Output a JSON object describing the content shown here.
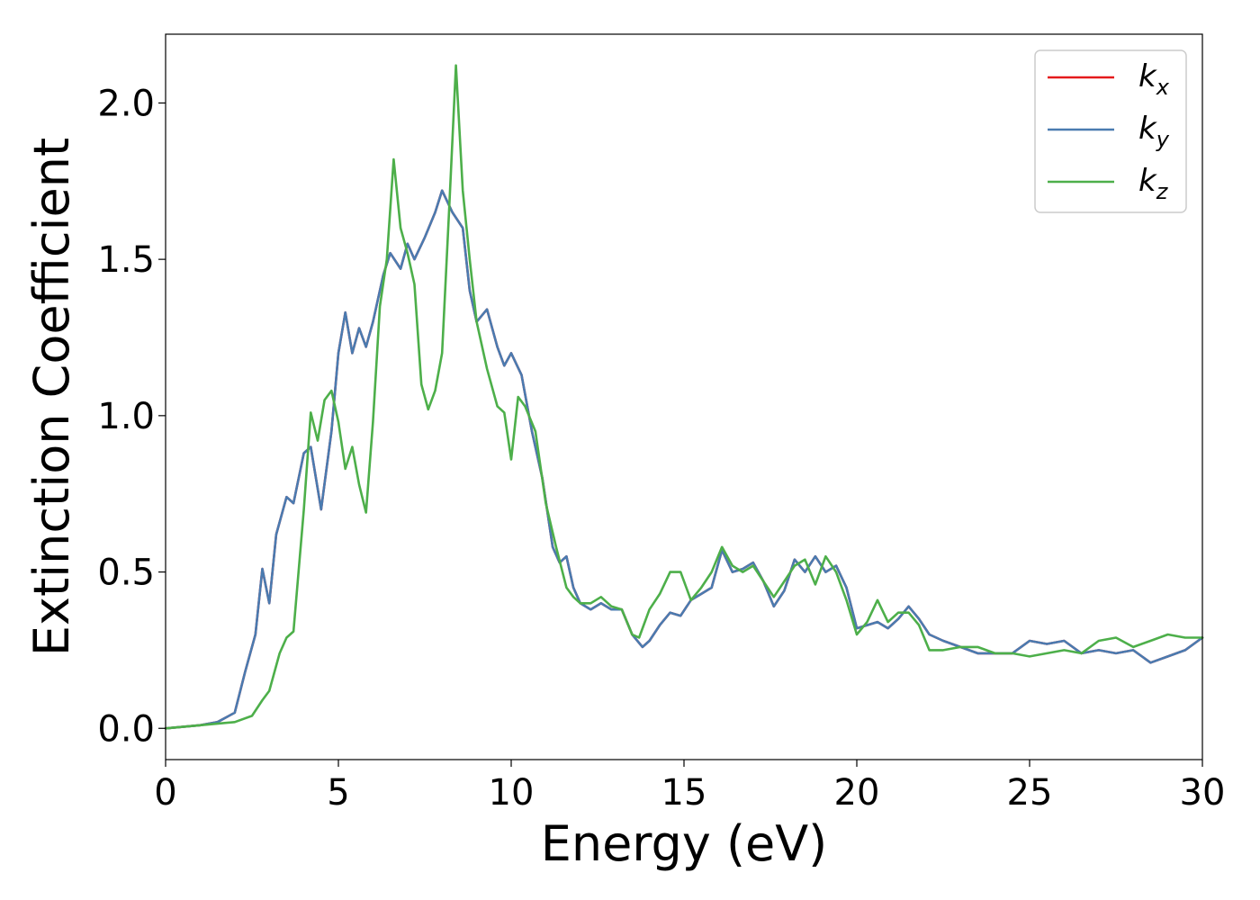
{
  "chart_data": {
    "type": "line",
    "title": "",
    "xlabel": "Energy (eV)",
    "ylabel": "Extinction Coefficient",
    "xlim": [
      0,
      30
    ],
    "ylim": [
      -0.1,
      2.22
    ],
    "xticks": [
      0,
      5,
      10,
      15,
      20,
      25,
      30
    ],
    "xtick_labels": [
      "0",
      "5",
      "10",
      "15",
      "20",
      "25",
      "30"
    ],
    "yticks": [
      0.0,
      0.5,
      1.0,
      1.5,
      2.0
    ],
    "ytick_labels": [
      "0.0",
      "0.5",
      "1.0",
      "1.5",
      "2.0"
    ],
    "grid": false,
    "legend_position": "top-right",
    "series": [
      {
        "name": "k_x",
        "label_main": "k",
        "label_sub": "x",
        "color": "#e41a1c",
        "x": [
          0,
          1,
          1.5,
          2,
          2.3,
          2.6,
          2.8,
          3,
          3.2,
          3.5,
          3.7,
          4,
          4.2,
          4.5,
          4.8,
          5,
          5.2,
          5.4,
          5.6,
          5.8,
          6,
          6.3,
          6.5,
          6.8,
          7,
          7.2,
          7.5,
          7.8,
          8,
          8.3,
          8.6,
          8.8,
          9,
          9.3,
          9.6,
          9.8,
          10,
          10.3,
          10.6,
          10.9,
          11.2,
          11.4,
          11.6,
          11.8,
          12,
          12.3,
          12.6,
          12.9,
          13.2,
          13.5,
          13.8,
          14,
          14.3,
          14.6,
          14.9,
          15.2,
          15.5,
          15.8,
          16.1,
          16.4,
          16.7,
          17,
          17.3,
          17.6,
          17.9,
          18.2,
          18.5,
          18.8,
          19.1,
          19.4,
          19.7,
          20,
          20.3,
          20.6,
          20.9,
          21.2,
          21.5,
          21.8,
          22.1,
          22.5,
          23,
          23.5,
          24,
          24.5,
          25,
          25.5,
          26,
          26.5,
          27,
          27.5,
          28,
          28.5,
          29,
          29.5,
          30
        ],
        "y": [
          0.0,
          0.01,
          0.02,
          0.05,
          0.18,
          0.3,
          0.51,
          0.4,
          0.62,
          0.74,
          0.72,
          0.88,
          0.9,
          0.7,
          0.95,
          1.2,
          1.33,
          1.2,
          1.28,
          1.22,
          1.3,
          1.45,
          1.52,
          1.47,
          1.55,
          1.5,
          1.57,
          1.65,
          1.72,
          1.65,
          1.6,
          1.4,
          1.3,
          1.34,
          1.22,
          1.16,
          1.2,
          1.13,
          0.95,
          0.8,
          0.58,
          0.53,
          0.55,
          0.45,
          0.4,
          0.38,
          0.4,
          0.38,
          0.38,
          0.3,
          0.26,
          0.28,
          0.33,
          0.37,
          0.36,
          0.41,
          0.43,
          0.45,
          0.57,
          0.5,
          0.51,
          0.53,
          0.47,
          0.39,
          0.44,
          0.54,
          0.5,
          0.55,
          0.5,
          0.52,
          0.45,
          0.32,
          0.33,
          0.34,
          0.32,
          0.35,
          0.39,
          0.35,
          0.3,
          0.28,
          0.26,
          0.24,
          0.24,
          0.24,
          0.28,
          0.27,
          0.28,
          0.24,
          0.25,
          0.24,
          0.25,
          0.21,
          0.23,
          0.25,
          0.29
        ]
      },
      {
        "name": "k_y",
        "label_main": "k",
        "label_sub": "y",
        "color": "#4a7bb0",
        "x": [
          0,
          1,
          1.5,
          2,
          2.3,
          2.6,
          2.8,
          3,
          3.2,
          3.5,
          3.7,
          4,
          4.2,
          4.5,
          4.8,
          5,
          5.2,
          5.4,
          5.6,
          5.8,
          6,
          6.3,
          6.5,
          6.8,
          7,
          7.2,
          7.5,
          7.8,
          8,
          8.3,
          8.6,
          8.8,
          9,
          9.3,
          9.6,
          9.8,
          10,
          10.3,
          10.6,
          10.9,
          11.2,
          11.4,
          11.6,
          11.8,
          12,
          12.3,
          12.6,
          12.9,
          13.2,
          13.5,
          13.8,
          14,
          14.3,
          14.6,
          14.9,
          15.2,
          15.5,
          15.8,
          16.1,
          16.4,
          16.7,
          17,
          17.3,
          17.6,
          17.9,
          18.2,
          18.5,
          18.8,
          19.1,
          19.4,
          19.7,
          20,
          20.3,
          20.6,
          20.9,
          21.2,
          21.5,
          21.8,
          22.1,
          22.5,
          23,
          23.5,
          24,
          24.5,
          25,
          25.5,
          26,
          26.5,
          27,
          27.5,
          28,
          28.5,
          29,
          29.5,
          30
        ],
        "y": [
          0.0,
          0.01,
          0.02,
          0.05,
          0.18,
          0.3,
          0.51,
          0.4,
          0.62,
          0.74,
          0.72,
          0.88,
          0.9,
          0.7,
          0.95,
          1.2,
          1.33,
          1.2,
          1.28,
          1.22,
          1.3,
          1.45,
          1.52,
          1.47,
          1.55,
          1.5,
          1.57,
          1.65,
          1.72,
          1.65,
          1.6,
          1.4,
          1.3,
          1.34,
          1.22,
          1.16,
          1.2,
          1.13,
          0.95,
          0.8,
          0.58,
          0.53,
          0.55,
          0.45,
          0.4,
          0.38,
          0.4,
          0.38,
          0.38,
          0.3,
          0.26,
          0.28,
          0.33,
          0.37,
          0.36,
          0.41,
          0.43,
          0.45,
          0.57,
          0.5,
          0.51,
          0.53,
          0.47,
          0.39,
          0.44,
          0.54,
          0.5,
          0.55,
          0.5,
          0.52,
          0.45,
          0.32,
          0.33,
          0.34,
          0.32,
          0.35,
          0.39,
          0.35,
          0.3,
          0.28,
          0.26,
          0.24,
          0.24,
          0.24,
          0.28,
          0.27,
          0.28,
          0.24,
          0.25,
          0.24,
          0.25,
          0.21,
          0.23,
          0.25,
          0.29
        ]
      },
      {
        "name": "k_z",
        "label_main": "k",
        "label_sub": "z",
        "color": "#4daf4a",
        "x": [
          0,
          1,
          2,
          2.5,
          2.8,
          3,
          3.3,
          3.5,
          3.7,
          4,
          4.2,
          4.4,
          4.6,
          4.8,
          5,
          5.2,
          5.4,
          5.6,
          5.8,
          6,
          6.2,
          6.4,
          6.6,
          6.8,
          7,
          7.2,
          7.4,
          7.6,
          7.8,
          8,
          8.2,
          8.4,
          8.6,
          8.8,
          9,
          9.3,
          9.6,
          9.8,
          10,
          10.2,
          10.4,
          10.7,
          11,
          11.3,
          11.6,
          11.8,
          12,
          12.3,
          12.6,
          12.9,
          13.2,
          13.5,
          13.7,
          14,
          14.3,
          14.6,
          14.9,
          15.2,
          15.5,
          15.8,
          16.1,
          16.4,
          16.7,
          17,
          17.3,
          17.6,
          17.9,
          18.2,
          18.5,
          18.8,
          19.1,
          19.4,
          19.7,
          20,
          20.3,
          20.6,
          20.9,
          21.2,
          21.5,
          21.8,
          22.1,
          22.5,
          23,
          23.5,
          24,
          24.5,
          25,
          25.5,
          26,
          26.5,
          27,
          27.5,
          28,
          28.5,
          29,
          29.5,
          30
        ],
        "y": [
          0.0,
          0.01,
          0.02,
          0.04,
          0.09,
          0.12,
          0.24,
          0.29,
          0.31,
          0.7,
          1.01,
          0.92,
          1.05,
          1.08,
          0.98,
          0.83,
          0.9,
          0.78,
          0.69,
          0.98,
          1.35,
          1.5,
          1.82,
          1.6,
          1.52,
          1.42,
          1.1,
          1.02,
          1.08,
          1.2,
          1.65,
          2.12,
          1.72,
          1.5,
          1.3,
          1.15,
          1.03,
          1.01,
          0.86,
          1.06,
          1.03,
          0.95,
          0.72,
          0.58,
          0.45,
          0.42,
          0.4,
          0.4,
          0.42,
          0.39,
          0.38,
          0.3,
          0.29,
          0.38,
          0.43,
          0.5,
          0.5,
          0.41,
          0.45,
          0.5,
          0.58,
          0.52,
          0.5,
          0.52,
          0.47,
          0.42,
          0.47,
          0.52,
          0.54,
          0.46,
          0.55,
          0.5,
          0.41,
          0.3,
          0.34,
          0.41,
          0.34,
          0.37,
          0.37,
          0.33,
          0.25,
          0.25,
          0.26,
          0.26,
          0.24,
          0.24,
          0.23,
          0.24,
          0.25,
          0.24,
          0.28,
          0.29,
          0.26,
          0.28,
          0.3,
          0.29,
          0.29
        ]
      }
    ]
  }
}
